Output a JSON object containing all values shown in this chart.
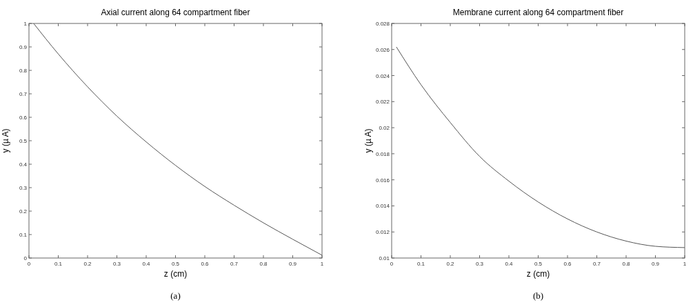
{
  "chart_data": [
    {
      "type": "line",
      "title": "Axial current along 64 compartment fiber",
      "xlabel": "z (cm)",
      "ylabel": "y (µ A)",
      "annotations": [
        "(a)"
      ],
      "x": [
        0.016,
        0.1,
        0.2,
        0.3,
        0.4,
        0.5,
        0.6,
        0.7,
        0.8,
        0.9,
        1.0
      ],
      "series": [
        {
          "color": "#555555",
          "values": [
            1.0,
            0.87,
            0.73,
            0.605,
            0.495,
            0.395,
            0.305,
            0.225,
            0.15,
            0.08,
            0.012
          ]
        }
      ],
      "xlim": [
        0,
        1
      ],
      "xticks": [
        0,
        0.1,
        0.2,
        0.3,
        0.4,
        0.5,
        0.6,
        0.7,
        0.8,
        0.9,
        1
      ],
      "ylim": [
        0,
        1
      ],
      "yticks": [
        0,
        0.1,
        0.2,
        0.3,
        0.4,
        0.5,
        0.6,
        0.7,
        0.8,
        0.9,
        1
      ],
      "grid": false
    },
    {
      "type": "line",
      "title": "Membrane current along 64 compartment fiber",
      "xlabel": "z (cm)",
      "ylabel": "y (µ A)",
      "annotations": [
        "(b)"
      ],
      "x": [
        0.016,
        0.1,
        0.2,
        0.3,
        0.4,
        0.5,
        0.6,
        0.7,
        0.8,
        0.9,
        1.0
      ],
      "series": [
        {
          "color": "#555555",
          "values": [
            0.0262,
            0.0233,
            0.0204,
            0.0178,
            0.0159,
            0.0143,
            0.013,
            0.012,
            0.0113,
            0.0109,
            0.0108
          ]
        }
      ],
      "xlim": [
        0,
        1
      ],
      "xticks": [
        0,
        0.1,
        0.2,
        0.3,
        0.4,
        0.5,
        0.6,
        0.7,
        0.8,
        0.9,
        1
      ],
      "ylim": [
        0.01,
        0.028
      ],
      "yticks": [
        0.01,
        0.012,
        0.014,
        0.016,
        0.018,
        0.02,
        0.022,
        0.024,
        0.026,
        0.028
      ],
      "grid": false
    }
  ]
}
